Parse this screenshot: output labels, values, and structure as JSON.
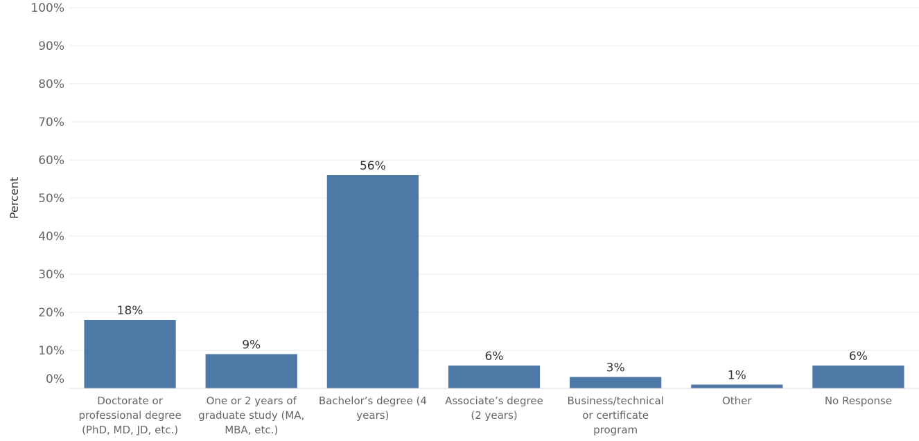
{
  "chart_data": {
    "type": "bar",
    "title": "",
    "xlabel": "",
    "ylabel": "Percent",
    "ylim": [
      0,
      100
    ],
    "yticks": [
      "0%",
      "10%",
      "20%",
      "30%",
      "40%",
      "50%",
      "60%",
      "70%",
      "80%",
      "90%",
      "100%"
    ],
    "grid": true,
    "categories": [
      [
        "Doctorate or",
        "professional degree",
        "(PhD, MD, JD, etc.)"
      ],
      [
        "One or 2 years of",
        "graduate study (MA,",
        "MBA, etc.)"
      ],
      [
        "Bachelor’s degree (4",
        "years)"
      ],
      [
        "Associate’s degree",
        "(2 years)"
      ],
      [
        "Business/technical",
        "or certificate",
        "program"
      ],
      [
        "Other"
      ],
      [
        "No Response"
      ]
    ],
    "values": [
      18,
      9,
      56,
      6,
      3,
      1,
      6
    ],
    "data_labels": [
      "18%",
      "9%",
      "56%",
      "6%",
      "3%",
      "1%",
      "6%"
    ],
    "colors": {
      "bar": "#4e79a7",
      "grid": "#ebebeb",
      "axis": "#d9d9d9"
    }
  }
}
